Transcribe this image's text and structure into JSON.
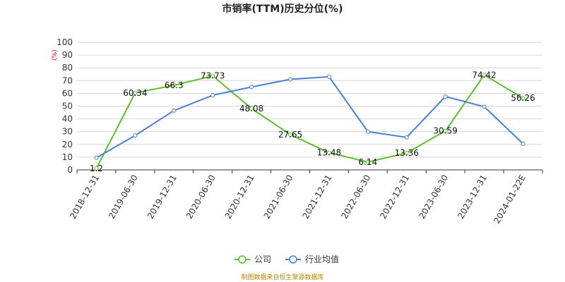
{
  "chart_data": {
    "type": "line",
    "title": "市销率(TTM)历史分位(%)",
    "unit": "(%)",
    "ylim": [
      0,
      100
    ],
    "yticks": [
      0,
      10,
      20,
      30,
      40,
      50,
      60,
      70,
      80,
      90,
      100
    ],
    "grid": true,
    "legend_position": "bottom",
    "categories": [
      "2018-12-31",
      "2019-06-30",
      "2019-12-31",
      "2020-06-30",
      "2020-12-31",
      "2021-06-30",
      "2021-12-31",
      "2022-06-30",
      "2022-12-31",
      "2023-06-30",
      "2023-12-31",
      "2024-01-22E"
    ],
    "series": [
      {
        "name": "公司",
        "color": "#5cbf2a",
        "values": [
          1.2,
          60.34,
          66.3,
          73.73,
          48.08,
          27.65,
          13.48,
          6.14,
          13.36,
          30.59,
          74.42,
          56.26
        ],
        "labels": [
          "1.2",
          "60.34",
          "66.3",
          "73.73",
          "48.08",
          "27.65",
          "13.48",
          "6.14",
          "13.36",
          "30.59",
          "74.42",
          "56.26"
        ]
      },
      {
        "name": "行业均值",
        "color": "#4a80d4",
        "values": [
          9.5,
          27,
          46.5,
          58.5,
          65,
          71,
          73,
          30,
          25.5,
          57.5,
          49.5,
          20.5
        ]
      }
    ],
    "source": "制图数据来自恒生聚源数据库"
  }
}
